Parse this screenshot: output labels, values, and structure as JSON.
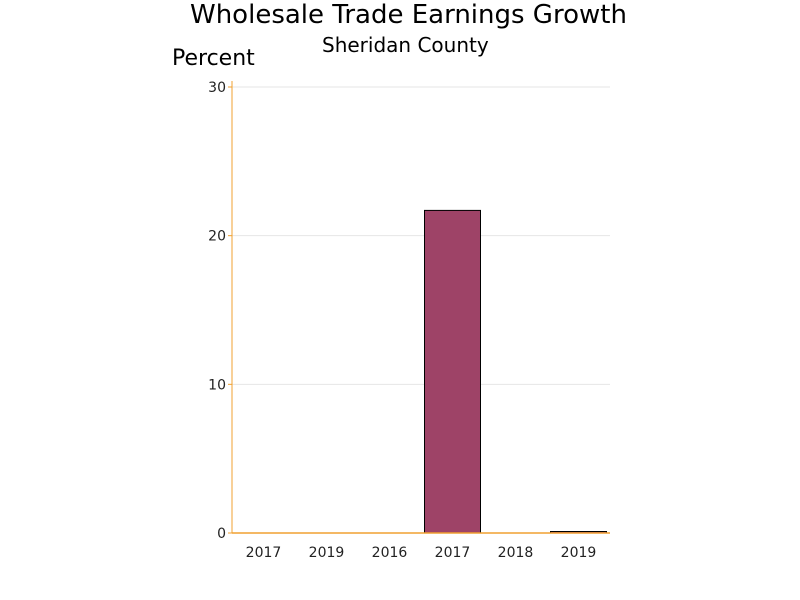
{
  "chart_data": {
    "type": "bar",
    "title": "Wholesale Trade Earnings Growth",
    "subtitle": "Sheridan County",
    "ylabel": "Percent",
    "xlabel": "",
    "categories": [
      "2017",
      "2019",
      "2016",
      "2017",
      "2018",
      "2019"
    ],
    "values": [
      0,
      0,
      0,
      21.7,
      0,
      0.1
    ],
    "ylim": [
      0,
      30
    ],
    "yticks": [
      0,
      10,
      20,
      30
    ],
    "grid": true,
    "legend": "none",
    "colors": {
      "bar": "#9e4367",
      "bar_outline": "#000000",
      "axis": "#f0a030",
      "grid": "#e6e6e6"
    }
  }
}
